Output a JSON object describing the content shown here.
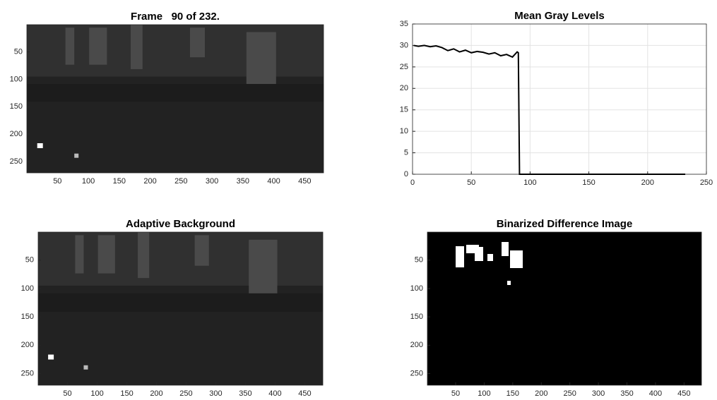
{
  "chart_data": [
    {
      "type": "image",
      "title": "Frame   90 of 232.",
      "xlim": [
        0.5,
        480.5
      ],
      "ylim": [
        0.5,
        270.5
      ],
      "yreverse": true,
      "xticks": [
        50,
        100,
        150,
        200,
        250,
        300,
        350,
        400,
        450
      ],
      "yticks": [
        50,
        100,
        150,
        200,
        250
      ]
    },
    {
      "type": "line",
      "title": "Mean Gray Levels",
      "xlim": [
        0,
        250
      ],
      "ylim": [
        0,
        35
      ],
      "xticks": [
        0,
        50,
        100,
        150,
        200,
        250
      ],
      "yticks": [
        0,
        5,
        10,
        15,
        20,
        25,
        30,
        35
      ],
      "grid": true,
      "x": [
        1,
        5,
        10,
        15,
        20,
        25,
        30,
        35,
        40,
        45,
        50,
        55,
        60,
        65,
        70,
        75,
        80,
        85,
        89,
        90,
        91,
        232
      ],
      "series": [
        {
          "color": "#000000",
          "values": [
            30,
            29.8,
            30,
            29.7,
            29.9,
            29.5,
            28.8,
            29.2,
            28.5,
            28.9,
            28.3,
            28.6,
            28.4,
            28.0,
            28.3,
            27.6,
            27.9,
            27.3,
            28.5,
            28.3,
            0,
            0
          ]
        }
      ]
    },
    {
      "type": "image",
      "title": "Adaptive Background",
      "xlim": [
        0.5,
        480.5
      ],
      "ylim": [
        0.5,
        270.5
      ],
      "yreverse": true,
      "xticks": [
        50,
        100,
        150,
        200,
        250,
        300,
        350,
        400,
        450
      ],
      "yticks": [
        50,
        100,
        150,
        200,
        250
      ]
    },
    {
      "type": "image",
      "title": "Binarized Difference Image",
      "xlim": [
        0.5,
        480.5
      ],
      "ylim": [
        0.5,
        270.5
      ],
      "yreverse": true,
      "binary": true,
      "xticks": [
        50,
        100,
        150,
        200,
        250,
        300,
        350,
        400,
        450
      ],
      "yticks": [
        50,
        100,
        150,
        200,
        250
      ]
    }
  ]
}
